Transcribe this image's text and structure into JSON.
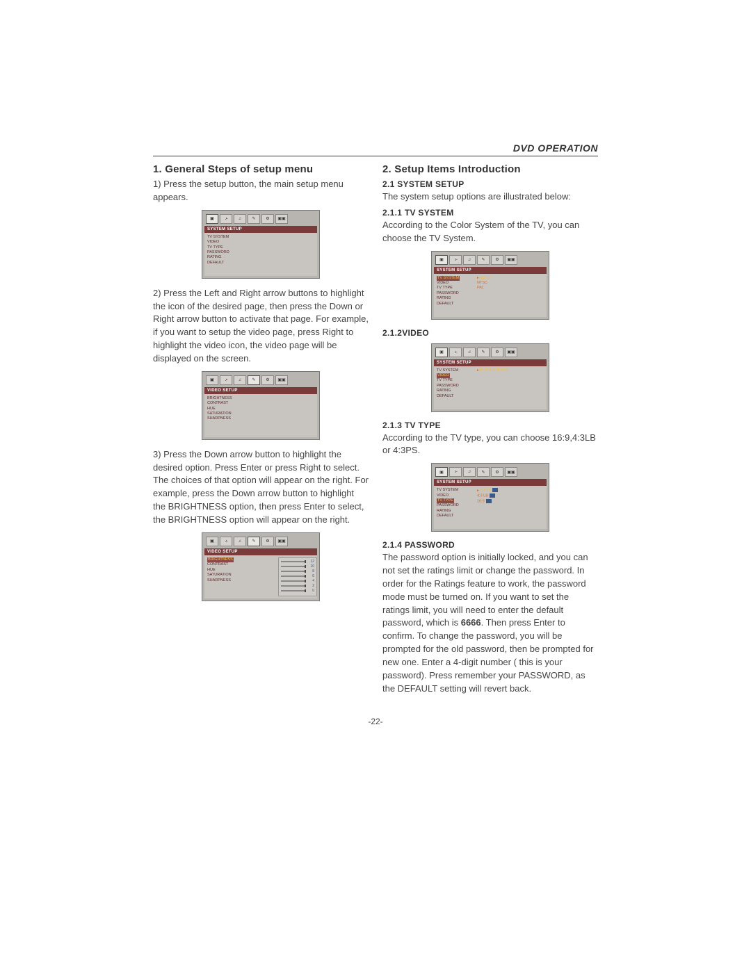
{
  "header": "DVD OPERATION",
  "page_number": "-22-",
  "left": {
    "h1": "1. General Steps of setup menu",
    "p1": "1) Press the setup button, the main setup menu appears.",
    "p2": "2) Press the Left and Right arrow buttons to highlight the icon of the desired  page, then press the Down or Right arrow button to activate that page. For example, if you want to setup the video page, press Right to highlight the video icon, the video page will be displayed on the screen.",
    "p3": "3) Press the Down arrow button to highlight the desired option. Press Enter or press Right to select. The choices of that option will appear on the right. For example, press the Down arrow button to highlight the BRIGHTNESS option, then press Enter to select, the BRIGHTNESS option will appear on the right.",
    "fig1": {
      "title": "SYSTEM SETUP",
      "items": [
        "TV SYSTEM",
        "VIDEO",
        "TV TYPE",
        "PASSWORD",
        "RATING",
        "DEFAULT"
      ],
      "sel_tab": 0
    },
    "fig2": {
      "title": "VIDEO SETUP",
      "items": [
        "BRIGHTNESS",
        "CONTRAST",
        "HUE",
        "SATURATION",
        "SHARPNESS"
      ],
      "sel_tab": 3
    },
    "fig3": {
      "title": "VIDEO SETUP",
      "items": [
        "BRIGHTNESS",
        "CONTRAST",
        "HUE",
        "SATURATION",
        "SHARPNESS"
      ],
      "hl": "BRIGHTNESS",
      "sel_tab": 3,
      "sliders": [
        "12",
        "10",
        "8",
        "6",
        "4",
        "2",
        "0"
      ]
    }
  },
  "right": {
    "h1": "2.  Setup Items Introduction",
    "s21": "2.1 SYSTEM SETUP",
    "p21": "The system setup options are illustrated below:",
    "s211": "2.1.1 TV SYSTEM",
    "p211": "According to the Color System of the TV, you can choose the TV System.",
    "fig211": {
      "title": "SYSTEM SETUP",
      "items": [
        "TV SYSTEM",
        "VIDEO",
        "TV TYPE",
        "PASSWORD",
        "RATING",
        "DEFAULT"
      ],
      "hl": "TV SYSTEM",
      "opts": [
        "AUTO",
        "NTSC",
        "PAL"
      ],
      "opt_hl": "AUTO"
    },
    "s212": "2.1.2VIDEO",
    "fig212": {
      "title": "SYSTEM SETUP",
      "items": [
        "TV SYSTEM",
        "VIDEO",
        "TV TYPE",
        "PASSWORD",
        "RATING",
        "DEFAULT"
      ],
      "hl": "VIDEO",
      "opts": [
        "P-SCAN YPBPR"
      ],
      "opt_hl": "P-SCAN YPBPR"
    },
    "s213": "2.1.3 TV TYPE",
    "p213": "According to the TV type, you can choose 16:9,4:3LB or 4:3PS.",
    "fig213": {
      "title": "SYSTEM SETUP",
      "items": [
        "TV SYSTEM",
        "VIDEO",
        "TV TYPE",
        "PASSWORD",
        "RATING",
        "DEFAULT"
      ],
      "hl": "TV TYPE",
      "opts": [
        "4:3  PS",
        "4:3  LB",
        "16:9"
      ],
      "opt_hl": "4:3  PS"
    },
    "s214": "2.1.4  PASSWORD",
    "p214a": "The password option is initially locked, and you can not set the ratings limit or change the password. In order for the Ratings feature to work, the password mode must be turned on. If you want to set the ratings limit, you will need to enter the default password, which is ",
    "p214b": "6666",
    "p214c": ". Then press Enter to confirm. To change the password, you will be prompted for the old password, then be prompted  for new one. Enter a 4-digit number ( this is your password). Press remember your PASSWORD, as the DEFAULT setting will revert back."
  },
  "tab_icons": [
    "▣",
    "♪̵",
    "♫",
    "✎",
    "⚙",
    "▣▣"
  ],
  "colors": {
    "osd_bg": "#b8b4b0",
    "osd_title_bg": "#7a3a3a",
    "osd_text": "#5a2a2a",
    "osd_opt": "#d07030",
    "osd_hl": "#f0c040"
  }
}
